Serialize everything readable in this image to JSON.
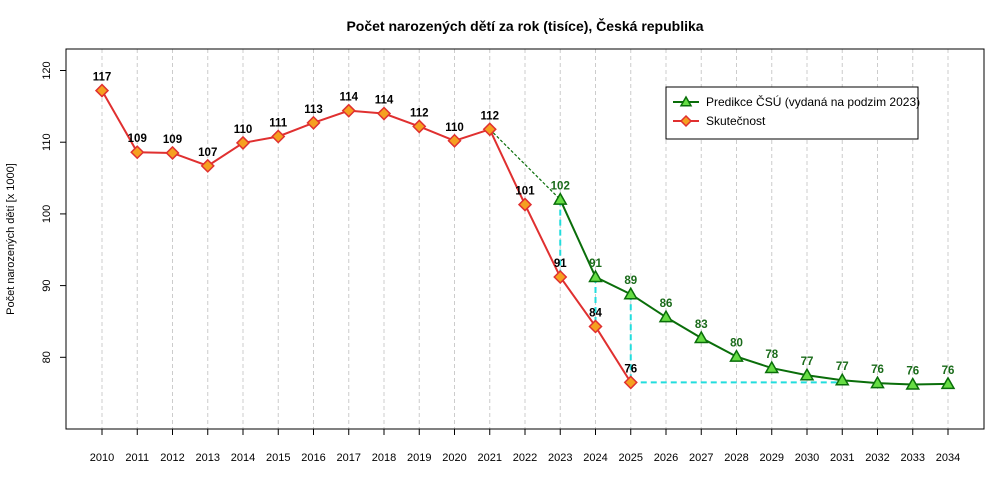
{
  "chart_data": {
    "type": "line",
    "title": "Počet narozených dětí za rok (tisíce), Česká republika",
    "xlabel": "",
    "ylabel": "Počet narozených dětí [x 1000]",
    "xlim": [
      2010,
      2034
    ],
    "ylim": [
      70,
      123
    ],
    "yticks": [
      80,
      90,
      100,
      110,
      120
    ],
    "xticks": [
      2010,
      2011,
      2012,
      2013,
      2014,
      2015,
      2016,
      2017,
      2018,
      2019,
      2020,
      2021,
      2022,
      2023,
      2024,
      2025,
      2026,
      2027,
      2028,
      2029,
      2030,
      2031,
      2032,
      2033,
      2034
    ],
    "grid": "vertical dashed",
    "legend_position": "top-right",
    "series": [
      {
        "name": "Skutečnost",
        "color": "#e03030",
        "marker_fill": "#f5a020",
        "x": [
          2010,
          2011,
          2012,
          2013,
          2014,
          2015,
          2016,
          2017,
          2018,
          2019,
          2020,
          2021,
          2022,
          2023,
          2024,
          2025
        ],
        "values": [
          117.2,
          108.6,
          108.5,
          106.7,
          109.9,
          110.8,
          112.7,
          114.4,
          114.0,
          112.2,
          110.2,
          111.8,
          101.3,
          91.2,
          84.3,
          76.5
        ],
        "labels": [
          "117",
          "109",
          "109",
          "107",
          "110",
          "111",
          "113",
          "114",
          "114",
          "112",
          "110",
          "112",
          "101",
          "91",
          "84",
          "76"
        ]
      },
      {
        "name": "Predikce ČSÚ (vydaná na podzim 2023)",
        "color": "#0a6e0a",
        "marker_fill": "#66dd44",
        "x": [
          2023,
          2024,
          2025,
          2026,
          2027,
          2028,
          2029,
          2030,
          2031,
          2032,
          2033,
          2034
        ],
        "values": [
          102.0,
          91.2,
          88.8,
          85.6,
          82.7,
          80.1,
          78.5,
          77.5,
          76.8,
          76.4,
          76.2,
          76.3
        ],
        "labels": [
          "102",
          "91",
          "89",
          "86",
          "83",
          "80",
          "78",
          "77",
          "77",
          "76",
          "76",
          "76"
        ]
      }
    ],
    "connector": {
      "from": [
        2021,
        111.8
      ],
      "to": [
        2023,
        102.0
      ],
      "color": "#0a6e0a"
    },
    "cyan_guides": [
      [
        [
          2023,
          102.0
        ],
        [
          2023,
          91.2
        ]
      ],
      [
        [
          2024,
          91.2
        ],
        [
          2024,
          84.3
        ]
      ],
      [
        [
          2025,
          88.8
        ],
        [
          2025,
          76.5
        ]
      ],
      [
        [
          2025,
          76.5
        ],
        [
          2031,
          76.5
        ]
      ]
    ],
    "cyan_color": "#22dddd"
  }
}
